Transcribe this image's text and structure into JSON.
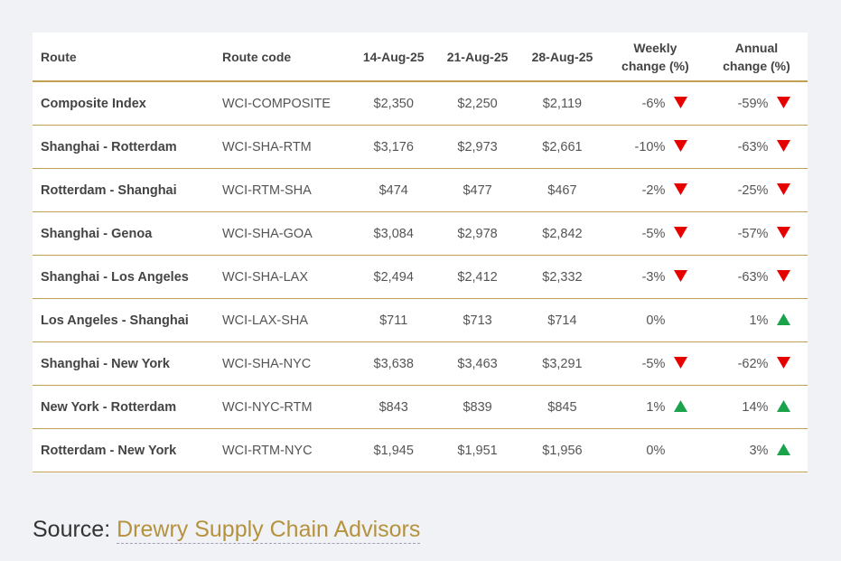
{
  "chart_data": {
    "type": "table",
    "columns": [
      "Route",
      "Route code",
      "14-Aug-25",
      "21-Aug-25",
      "28-Aug-25",
      "Weekly change (%)",
      "Annual change (%)"
    ],
    "header_lines": {
      "weekly": [
        "Weekly",
        "change (%)"
      ],
      "annual": [
        "Annual",
        "change (%)"
      ]
    },
    "rows": [
      {
        "route": "Composite Index",
        "code": "WCI-COMPOSITE",
        "d1": "$2,350",
        "d2": "$2,250",
        "d3": "$2,119",
        "weekly": "-6%",
        "weekly_dir": "down",
        "annual": "-59%",
        "annual_dir": "down"
      },
      {
        "route": "Shanghai - Rotterdam",
        "code": "WCI-SHA-RTM",
        "d1": "$3,176",
        "d2": "$2,973",
        "d3": "$2,661",
        "weekly": "-10%",
        "weekly_dir": "down",
        "annual": "-63%",
        "annual_dir": "down"
      },
      {
        "route": "Rotterdam - Shanghai",
        "code": "WCI-RTM-SHA",
        "d1": "$474",
        "d2": "$477",
        "d3": "$467",
        "weekly": "-2%",
        "weekly_dir": "down",
        "annual": "-25%",
        "annual_dir": "down"
      },
      {
        "route": "Shanghai - Genoa",
        "code": "WCI-SHA-GOA",
        "d1": "$3,084",
        "d2": "$2,978",
        "d3": "$2,842",
        "weekly": "-5%",
        "weekly_dir": "down",
        "annual": "-57%",
        "annual_dir": "down"
      },
      {
        "route": "Shanghai - Los Angeles",
        "code": "WCI-SHA-LAX",
        "d1": "$2,494",
        "d2": "$2,412",
        "d3": "$2,332",
        "weekly": "-3%",
        "weekly_dir": "down",
        "annual": "-63%",
        "annual_dir": "down"
      },
      {
        "route": "Los Angeles - Shanghai",
        "code": "WCI-LAX-SHA",
        "d1": "$711",
        "d2": "$713",
        "d3": "$714",
        "weekly": "0%",
        "weekly_dir": "none",
        "annual": "1%",
        "annual_dir": "up"
      },
      {
        "route": "Shanghai - New York",
        "code": "WCI-SHA-NYC",
        "d1": "$3,638",
        "d2": "$3,463",
        "d3": "$3,291",
        "weekly": "-5%",
        "weekly_dir": "down",
        "annual": "-62%",
        "annual_dir": "down"
      },
      {
        "route": "New York - Rotterdam",
        "code": "WCI-NYC-RTM",
        "d1": "$843",
        "d2": "$839",
        "d3": "$845",
        "weekly": "1%",
        "weekly_dir": "up",
        "annual": "14%",
        "annual_dir": "up"
      },
      {
        "route": "Rotterdam - New York",
        "code": "WCI-RTM-NYC",
        "d1": "$1,945",
        "d2": "$1,951",
        "d3": "$1,956",
        "weekly": "0%",
        "weekly_dir": "none",
        "annual": "3%",
        "annual_dir": "up"
      }
    ]
  },
  "source": {
    "label": "Source:",
    "link_text": "Drewry Supply Chain Advisors"
  },
  "colors": {
    "down": "#e60000",
    "up": "#1aa34a",
    "rule": "#c2a052",
    "link": "#b5923e"
  }
}
